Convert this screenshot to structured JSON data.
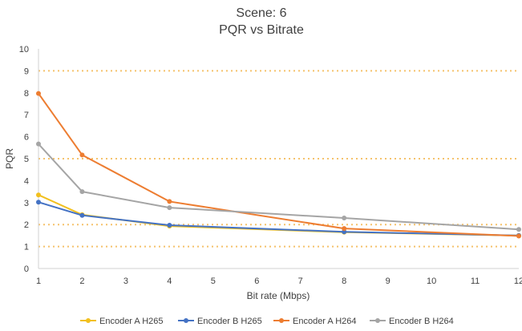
{
  "chart_data": {
    "type": "line",
    "title": "Scene: 6",
    "subtitle": "PQR vs Bitrate",
    "xlabel": "Bit rate (Mbps)",
    "ylabel": "PQR",
    "xlim": [
      1,
      12
    ],
    "ylim": [
      0,
      10
    ],
    "x_ticks": [
      "1",
      "2",
      "3",
      "4",
      "5",
      "6",
      "7",
      "8",
      "9",
      "10",
      "11",
      "12"
    ],
    "y_ticks": [
      "0",
      "1",
      "2",
      "3",
      "4",
      "5",
      "6",
      "7",
      "8",
      "9",
      "10"
    ],
    "x": [
      1,
      2,
      4,
      8,
      12
    ],
    "gridlines": [
      1,
      2,
      5,
      9
    ],
    "grid_color": "#f5c26b",
    "legend_position": "bottom",
    "series": [
      {
        "name": "Encoder A H265",
        "color": "#f2c01e",
        "values": [
          3.35,
          2.45,
          1.93,
          1.65,
          1.5
        ]
      },
      {
        "name": "Encoder B H265",
        "color": "#4472c4",
        "values": [
          3.02,
          2.42,
          1.97,
          1.67,
          1.5
        ]
      },
      {
        "name": "Encoder A H264",
        "color": "#ed7d31",
        "values": [
          7.97,
          5.17,
          3.05,
          1.82,
          1.48
        ]
      },
      {
        "name": "Encoder B H264",
        "color": "#a5a5a5",
        "values": [
          5.67,
          3.5,
          2.77,
          2.3,
          1.78
        ]
      }
    ]
  }
}
